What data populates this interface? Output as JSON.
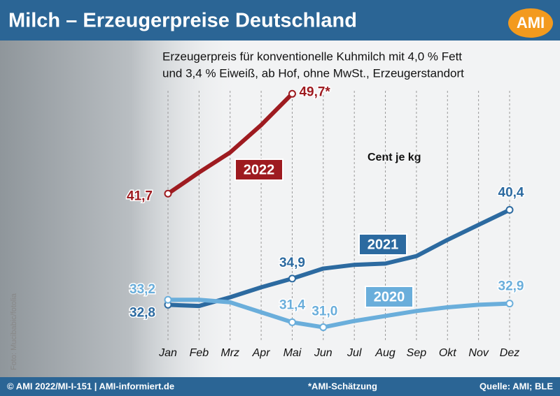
{
  "chart_data": {
    "type": "line",
    "title": "Milch – Erzeugerpreise Deutschland",
    "logo": "AMI",
    "subtitle": [
      "Erzeugerpreis für konventionelle Kuhmilch mit 4,0 % Fett",
      "und 3,4 % Eiweiß, ab Hof, ohne MwSt., Erzeugerstandort"
    ],
    "unit_label": "Cent je kg",
    "photo_credit": "Foto: Mucibabic/fotolia",
    "footer_left": "© AMI 2022/MI-I-151 | AMI-informiert.de",
    "footer_note": "*AMI-Schätzung",
    "source": "Quelle: AMI; BLE",
    "categories": [
      "Jan",
      "Feb",
      "Mrz",
      "Apr",
      "Mai",
      "Jun",
      "Jul",
      "Aug",
      "Sep",
      "Okt",
      "Nov",
      "Dez"
    ],
    "ylim": [
      29.8,
      50.5
    ],
    "grid": true,
    "series": [
      {
        "name": "2022",
        "color": "#9e1b20",
        "values": [
          41.7,
          43.4,
          45.0,
          47.2,
          49.7,
          null,
          null,
          null,
          null,
          null,
          null,
          null
        ],
        "value_labels": [
          "41,7",
          null,
          null,
          null,
          "49,7*",
          null,
          null,
          null,
          null,
          null,
          null,
          null
        ]
      },
      {
        "name": "2021",
        "color": "#2c6aa0",
        "values": [
          32.8,
          32.7,
          33.4,
          34.2,
          34.9,
          35.7,
          36.0,
          36.1,
          36.7,
          38.0,
          39.2,
          40.4
        ],
        "value_labels": [
          "32,8",
          null,
          null,
          null,
          "34,9",
          null,
          null,
          null,
          null,
          null,
          null,
          "40,4"
        ]
      },
      {
        "name": "2020",
        "color": "#6aaedb",
        "values": [
          33.2,
          33.2,
          33.0,
          32.2,
          31.4,
          31.0,
          31.5,
          31.9,
          32.3,
          32.6,
          32.8,
          32.9
        ],
        "value_labels": [
          "33,2",
          null,
          null,
          null,
          "31,4",
          "31,0",
          null,
          null,
          null,
          null,
          null,
          "32,9"
        ]
      }
    ]
  }
}
